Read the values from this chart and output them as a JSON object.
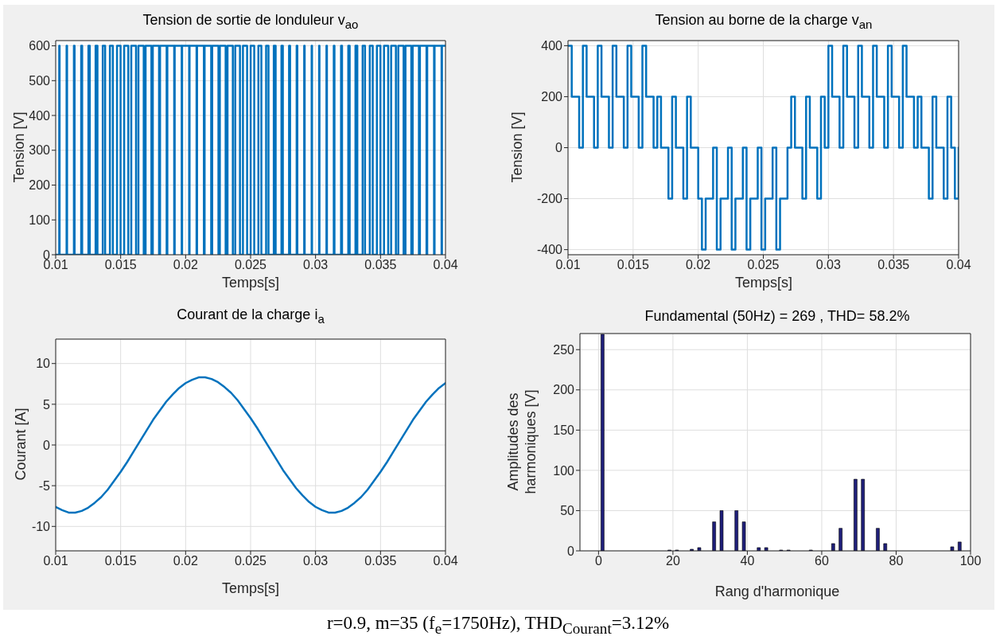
{
  "chart_data": [
    {
      "type": "step",
      "title": "Tension de sortie de londuleur v$_{ao}$",
      "xlabel": "Temps[s]",
      "ylabel": "Tension [V]",
      "color": "#0072bd",
      "xlim": [
        0.01,
        0.04
      ],
      "xticks": [
        0.01,
        0.015,
        0.02,
        0.025,
        0.03,
        0.035,
        0.04
      ],
      "ylim": [
        0,
        615
      ],
      "yticks": [
        0,
        100,
        200,
        300,
        400,
        500,
        600
      ],
      "grid": true,
      "x": [
        0.01,
        0.010271,
        0.010301,
        0.010838,
        0.010876,
        0.011402,
        0.011456,
        0.011961,
        0.012039,
        0.012518,
        0.012626,
        0.013071,
        0.013215,
        0.013622,
        0.013806,
        0.014172,
        0.0144,
        0.01472,
        0.014994,
        0.015269,
        0.015589,
        0.015817,
        0.016183,
        0.016368,
        0.016776,
        0.01692,
        0.017366,
        0.017474,
        0.017954,
        0.018033,
        0.018539,
        0.018594,
        0.01912,
        0.01916,
        0.019698,
        0.019729,
        0.020271,
        0.020303,
        0.020841,
        0.02088,
        0.021406,
        0.021461,
        0.021967,
        0.022046,
        0.022526,
        0.022634,
        0.02308,
        0.023225,
        0.023633,
        0.023817,
        0.024183,
        0.024412,
        0.024732,
        0.025006,
        0.02528,
        0.0256,
        0.025828,
        0.026194,
        0.026378,
        0.026785,
        0.026929,
        0.027375,
        0.027483,
        0.027961,
        0.028039,
        0.028545,
        0.028599,
        0.029124,
        0.029162,
        0.029699,
        0.029729,
        0.030271,
        0.030301,
        0.030838,
        0.030876,
        0.031402,
        0.031456,
        0.031961,
        0.032039,
        0.032518,
        0.032626,
        0.033071,
        0.033215,
        0.033622,
        0.033806,
        0.034172,
        0.0344,
        0.03472,
        0.034994,
        0.035269,
        0.035589,
        0.035817,
        0.036183,
        0.036368,
        0.036776,
        0.03692,
        0.037366,
        0.037474,
        0.037954,
        0.038033,
        0.038539,
        0.038594,
        0.03912,
        0.03916,
        0.039698,
        0.039729,
        0.04
      ],
      "values": [
        0,
        600,
        0,
        600,
        0,
        600,
        0,
        600,
        0,
        600,
        0,
        600,
        0,
        600,
        0,
        600,
        0,
        600,
        0,
        600,
        0,
        600,
        0,
        600,
        0,
        600,
        0,
        600,
        0,
        600,
        0,
        600,
        0,
        600,
        0,
        600,
        0,
        600,
        0,
        600,
        0,
        600,
        0,
        600,
        0,
        600,
        0,
        600,
        0,
        600,
        0,
        600,
        0,
        600,
        0,
        600,
        0,
        600,
        0,
        600,
        0,
        600,
        0,
        600,
        0,
        600,
        0,
        600,
        0,
        600,
        0,
        600,
        0,
        600,
        0,
        600,
        0,
        600,
        0,
        600,
        0,
        600,
        0,
        600,
        0,
        600,
        0,
        600,
        0,
        600,
        0,
        600,
        0,
        600,
        0,
        600,
        0,
        600,
        0,
        600,
        0,
        600,
        0,
        600,
        0,
        600,
        600
      ]
    },
    {
      "type": "step",
      "title": "Tension au borne de la charge v$_{an}$",
      "xlabel": "Temps[s]",
      "ylabel": "Tension [V]",
      "color": "#0072bd",
      "xlim": [
        0.01,
        0.04
      ],
      "xticks": [
        0.01,
        0.015,
        0.02,
        0.025,
        0.03,
        0.035,
        0.04
      ],
      "ylim": [
        -420,
        420
      ],
      "yticks": [
        -400,
        -200,
        0,
        200,
        400
      ],
      "grid": true,
      "x": [
        0.01,
        0.010286,
        0.010571,
        0.010857,
        0.011143,
        0.011429,
        0.011714,
        0.012,
        0.012286,
        0.012572,
        0.012857,
        0.013143,
        0.013429,
        0.013715,
        0.014,
        0.014286,
        0.014571,
        0.014857,
        0.015143,
        0.015429,
        0.015714,
        0.016,
        0.016286,
        0.016572,
        0.016857,
        0.017143,
        0.017429,
        0.017715,
        0.018,
        0.018286,
        0.018571,
        0.018857,
        0.019143,
        0.019429,
        0.019714,
        0.02,
        0.020286,
        0.020572,
        0.020857,
        0.021143,
        0.021429,
        0.021715,
        0.022,
        0.022286,
        0.022571,
        0.022857,
        0.023143,
        0.023429,
        0.023714,
        0.024,
        0.024286,
        0.024572,
        0.024857,
        0.025143,
        0.025429,
        0.025715,
        0.026,
        0.026286,
        0.026571,
        0.026857,
        0.027143,
        0.027429,
        0.027714,
        0.028,
        0.028286,
        0.028572,
        0.028857,
        0.029143,
        0.029429,
        0.029715,
        0.03,
        0.030286,
        0.030571,
        0.030857,
        0.031143,
        0.031429,
        0.031714,
        0.032,
        0.032286,
        0.032572,
        0.032857,
        0.033143,
        0.033429,
        0.033715,
        0.034,
        0.034286,
        0.034571,
        0.034857,
        0.035143,
        0.035429,
        0.035714,
        0.036,
        0.036286,
        0.036572,
        0.036857,
        0.037143,
        0.037429,
        0.037715,
        0.038,
        0.038286,
        0.038571,
        0.038857,
        0.039143,
        0.039429,
        0.039714,
        0.04
      ],
      "values": [
        400,
        200,
        200,
        0,
        400,
        200,
        200,
        0,
        400,
        200,
        200,
        0,
        400,
        200,
        200,
        0,
        400,
        200,
        200,
        0,
        400,
        200,
        200,
        0,
        200,
        0,
        0,
        -200,
        200,
        0,
        0,
        -200,
        200,
        0,
        0,
        -200,
        -400,
        -200,
        -200,
        0,
        -400,
        -200,
        -200,
        0,
        -400,
        -200,
        -200,
        0,
        -400,
        -200,
        -200,
        0,
        -400,
        -200,
        -200,
        0,
        -400,
        -200,
        -200,
        0,
        200,
        0,
        0,
        -200,
        200,
        0,
        0,
        -200,
        200,
        0,
        400,
        200,
        200,
        0,
        400,
        200,
        200,
        0,
        400,
        200,
        200,
        0,
        400,
        200,
        200,
        0,
        400,
        200,
        200,
        0,
        400,
        200,
        200,
        0,
        200,
        0,
        0,
        -200,
        200,
        0,
        0,
        -200,
        200,
        0,
        -200,
        0
      ]
    },
    {
      "type": "line",
      "title": "Courant de la charge i$_{a}$",
      "xlabel": "Temps[s]",
      "ylabel": "Courant [A]",
      "color": "#0072bd",
      "xlim": [
        0.01,
        0.04
      ],
      "xticks": [
        0.01,
        0.015,
        0.02,
        0.025,
        0.03,
        0.035,
        0.04
      ],
      "ylim": [
        -13,
        13
      ],
      "yticks": [
        -10,
        -5,
        0,
        5,
        10
      ],
      "grid": true,
      "x": [
        0.01,
        0.0105,
        0.011,
        0.0115,
        0.012,
        0.0125,
        0.013,
        0.0135,
        0.014,
        0.0145,
        0.015,
        0.0155,
        0.016,
        0.0165,
        0.017,
        0.0175,
        0.018,
        0.0185,
        0.019,
        0.0195,
        0.02,
        0.0205,
        0.021,
        0.0215,
        0.022,
        0.0225,
        0.023,
        0.0235,
        0.024,
        0.0245,
        0.025,
        0.0255,
        0.026,
        0.0265,
        0.027,
        0.0275,
        0.028,
        0.0285,
        0.029,
        0.0295,
        0.03,
        0.0305,
        0.031,
        0.0315,
        0.032,
        0.0325,
        0.033,
        0.0335,
        0.034,
        0.0345,
        0.035,
        0.0355,
        0.036,
        0.0365,
        0.037,
        0.0375,
        0.038,
        0.0385,
        0.039,
        0.0395,
        0.04
      ],
      "values": [
        -7.6,
        -8.0,
        -8.3,
        -8.3,
        -8.1,
        -7.7,
        -7.1,
        -6.4,
        -5.5,
        -4.4,
        -3.3,
        -2.1,
        -0.8,
        0.5,
        1.8,
        3.1,
        4.2,
        5.3,
        6.2,
        7.0,
        7.6,
        8.0,
        8.3,
        8.3,
        8.1,
        7.7,
        7.1,
        6.4,
        5.5,
        4.4,
        3.3,
        2.1,
        0.8,
        -0.5,
        -1.8,
        -3.1,
        -4.2,
        -5.3,
        -6.2,
        -7.0,
        -7.6,
        -8.0,
        -8.3,
        -8.3,
        -8.1,
        -7.7,
        -7.1,
        -6.4,
        -5.5,
        -4.4,
        -3.3,
        -2.1,
        -0.8,
        0.5,
        1.8,
        3.1,
        4.2,
        5.3,
        6.2,
        7.0,
        7.6
      ]
    },
    {
      "type": "bar",
      "title": "Fundamental (50Hz) = 269 , THD= 58.2%",
      "xlabel": "Rang d'harmonique",
      "ylabel": "Amplitudes des\nharmoniques [V]",
      "color": "#1f1f7a",
      "xlim": [
        -5,
        100
      ],
      "xticks": [
        0,
        20,
        40,
        60,
        80,
        100
      ],
      "ylim": [
        0,
        270
      ],
      "yticks": [
        0,
        50,
        100,
        150,
        200,
        250
      ],
      "grid": true,
      "x": [
        1,
        19,
        21,
        25,
        27,
        31,
        33,
        37,
        39,
        43,
        45,
        49,
        51,
        57,
        63,
        65,
        69,
        71,
        75,
        77,
        95,
        97
      ],
      "values": [
        269,
        1,
        1,
        2,
        4,
        36,
        50,
        50,
        36,
        4,
        4,
        1,
        1,
        1,
        9,
        28,
        89,
        89,
        28,
        9,
        5,
        11
      ],
      "annotations": [
        "r=0.9, m=35 (f$_{e}$=1750Hz), THD$_{Courant}$=3.12%"
      ]
    }
  ]
}
